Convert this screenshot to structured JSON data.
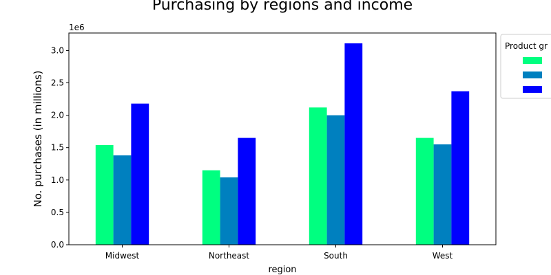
{
  "chart_data": {
    "type": "bar",
    "title": "Purchasing by regions and income",
    "xlabel": "region",
    "ylabel": "No. purchases (in millions)",
    "y_offset_text": "1e6",
    "categories": [
      "Midwest",
      "Northeast",
      "South",
      "West"
    ],
    "ylim": [
      0,
      3270000
    ],
    "yticks": [
      0.0,
      0.5,
      1.0,
      1.5,
      2.0,
      2.5,
      3.0
    ],
    "ytick_labels": [
      "0.0",
      "0.5",
      "1.0",
      "1.5",
      "2.0",
      "2.5",
      "3.0"
    ],
    "grid": false,
    "legend": {
      "title": "Product gr",
      "placement": "outside-right-top",
      "entries": [
        "",
        "",
        ""
      ]
    },
    "series": [
      {
        "color": "#00ff80",
        "values": [
          1540000,
          1150000,
          2120000,
          1650000
        ]
      },
      {
        "color": "#0080bf",
        "values": [
          1380000,
          1040000,
          2000000,
          1550000
        ]
      },
      {
        "color": "#0000ff",
        "values": [
          2180000,
          1650000,
          3110000,
          2370000
        ]
      }
    ]
  }
}
